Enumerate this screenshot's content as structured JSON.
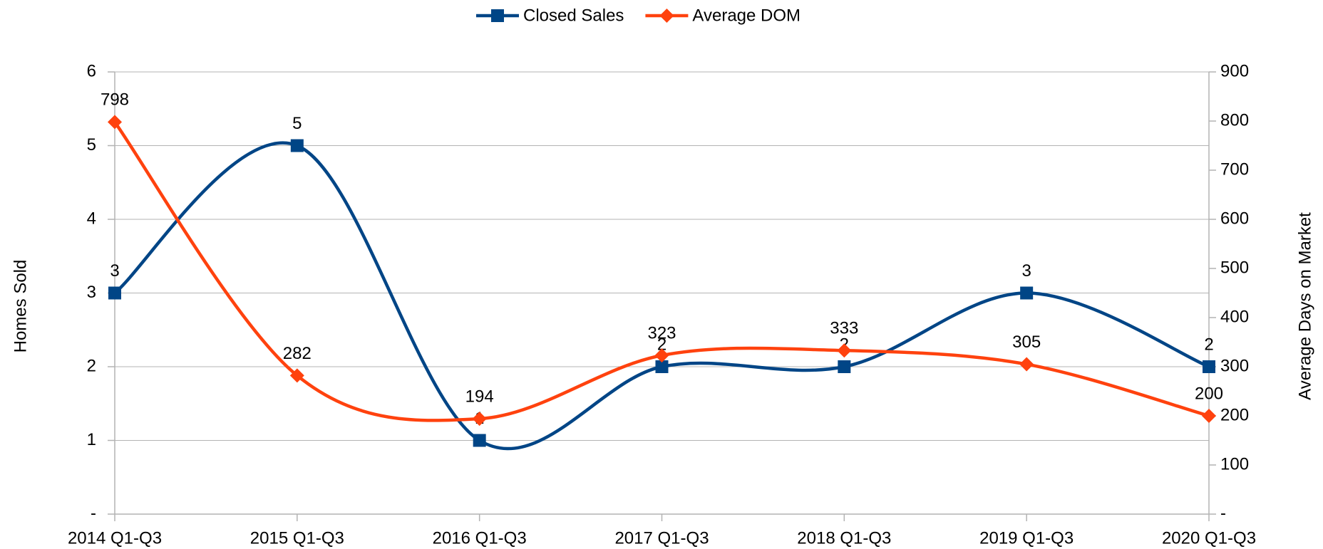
{
  "chart_data": {
    "type": "line",
    "categories": [
      "2014 Q1-Q3",
      "2015 Q1-Q3",
      "2016 Q1-Q3",
      "2017 Q1-Q3",
      "2018 Q1-Q3",
      "2019 Q1-Q3",
      "2020 Q1-Q3"
    ],
    "series": [
      {
        "name": "Closed Sales",
        "color": "#004586",
        "marker": "square",
        "values": [
          3,
          5,
          1,
          2,
          2,
          3,
          2
        ]
      },
      {
        "name": "Average DOM",
        "color": "#ff420e",
        "marker": "diamond",
        "axis": "y2",
        "values": [
          798,
          282,
          194,
          323,
          333,
          305,
          200
        ]
      }
    ],
    "ylabel": "Homes Sold",
    "y2label": "Average Days on Market",
    "ylim": [
      0,
      6
    ],
    "yticks": [
      {
        "value": 0,
        "label": "-"
      },
      1,
      2,
      3,
      4,
      5,
      6
    ],
    "y2lim": [
      0,
      900
    ],
    "y2ticks": [
      {
        "value": 0,
        "label": "-"
      },
      100,
      200,
      300,
      400,
      500,
      600,
      700,
      800,
      900
    ],
    "grid": true,
    "legend": "top",
    "smooth": true
  }
}
